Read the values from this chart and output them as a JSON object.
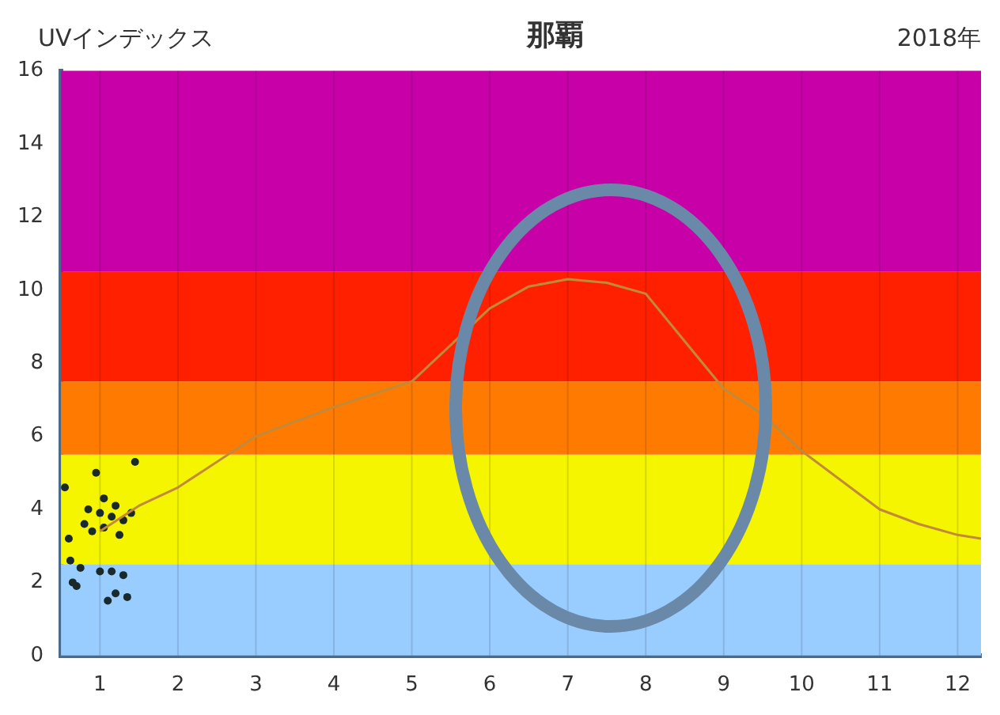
{
  "chart_data": {
    "type": "line",
    "title": "那覇",
    "ylabel": "UVインデックス",
    "annotations": [
      "2018年"
    ],
    "xlim": [
      0.5,
      12.3
    ],
    "xticks": [
      1,
      2,
      3,
      4,
      5,
      6,
      7,
      8,
      9,
      10,
      11,
      12
    ],
    "ylim": [
      0,
      16
    ],
    "yticks": [
      0,
      2,
      4,
      6,
      8,
      10,
      12,
      14,
      16
    ],
    "grid": "x",
    "bands": [
      {
        "axis": "y",
        "from": 0,
        "to": 2.5,
        "color": "#99ccff"
      },
      {
        "axis": "y",
        "from": 2.5,
        "to": 5.5,
        "color": "#f5f500"
      },
      {
        "axis": "y",
        "from": 5.5,
        "to": 7.5,
        "color": "#ff7a00"
      },
      {
        "axis": "y",
        "from": 7.5,
        "to": 10.5,
        "color": "#ff2000"
      },
      {
        "axis": "y",
        "from": 10.5,
        "to": 16,
        "color": "#c800a8"
      }
    ],
    "series": [
      {
        "color": "#c08a3a",
        "marker": "none",
        "x": [
          1,
          1.5,
          2,
          3,
          4,
          5,
          6,
          6.5,
          7,
          7.5,
          8,
          8.5,
          9,
          9.5,
          10,
          11,
          11.5,
          12,
          12.3
        ],
        "values": [
          3.4,
          4.1,
          4.6,
          6.0,
          6.8,
          7.5,
          9.5,
          10.1,
          10.3,
          10.2,
          9.9,
          8.6,
          7.3,
          6.6,
          5.6,
          4.0,
          3.6,
          3.3,
          3.2
        ]
      },
      {
        "type": "scatter",
        "color": "#1a2a2a",
        "marker": "circle",
        "x": [
          0.55,
          0.6,
          0.62,
          0.65,
          0.7,
          0.75,
          0.8,
          0.85,
          0.9,
          0.95,
          1.0,
          1.0,
          1.05,
          1.1,
          1.15,
          1.2,
          1.2,
          1.25,
          1.3,
          1.3,
          1.35,
          1.4,
          1.45,
          1.05,
          1.15
        ],
        "values": [
          4.6,
          3.2,
          2.6,
          2.0,
          1.9,
          2.4,
          3.6,
          4.0,
          3.4,
          5.0,
          2.3,
          3.9,
          3.5,
          1.5,
          3.8,
          4.1,
          1.7,
          3.3,
          3.7,
          2.2,
          1.6,
          3.9,
          5.3,
          4.3,
          2.3
        ]
      }
    ]
  }
}
